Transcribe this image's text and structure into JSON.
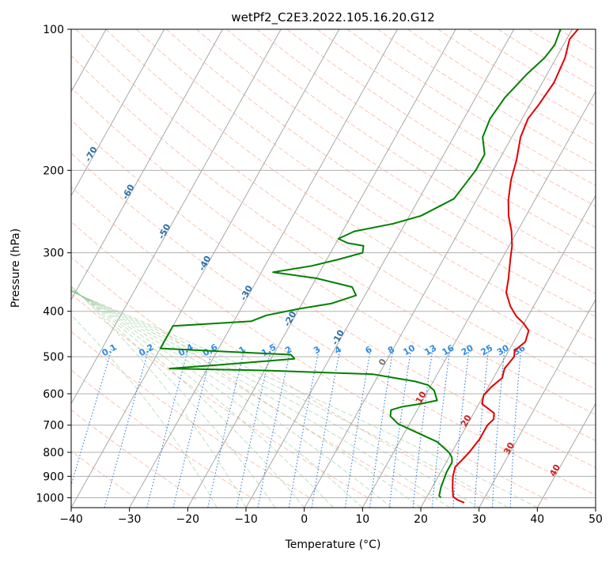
{
  "chart_data": {
    "type": "line",
    "title": "wetPf2_C2E3.2022.105.16.20.G12",
    "xlabel": "Temperature (°C)",
    "ylabel": "Pressure (hPa)",
    "xlim": [
      -40,
      50
    ],
    "ylim": [
      1050,
      100
    ],
    "y_scale": "log",
    "grid": true,
    "x_ticks": [
      -40,
      -30,
      -20,
      -10,
      0,
      10,
      20,
      30,
      40,
      50
    ],
    "y_ticks": [
      100,
      200,
      300,
      400,
      500,
      600,
      700,
      800,
      900,
      1000
    ],
    "skewed_isotherms": [
      -100,
      -90,
      -80,
      -70,
      -60,
      -50,
      -40,
      -30,
      -20,
      -10,
      0,
      10,
      20,
      30,
      40
    ],
    "mixing_ratio_labels": [
      "0.1",
      "0.2",
      "0.4",
      "0.6",
      "1",
      "1.5",
      "2",
      "3",
      "4",
      "6",
      "8",
      "10",
      "13",
      "16",
      "20",
      "25",
      "30",
      "36"
    ],
    "series": [
      {
        "color": "#e00000",
        "points": [
          [
            27.0,
            1025
          ],
          [
            25.5,
            1010
          ],
          [
            24.5,
            995
          ],
          [
            23.5,
            950
          ],
          [
            22.5,
            900
          ],
          [
            22.0,
            860
          ],
          [
            22.5,
            830
          ],
          [
            23.0,
            800
          ],
          [
            23.5,
            750
          ],
          [
            23.5,
            700
          ],
          [
            24.0,
            680
          ],
          [
            23.5,
            660
          ],
          [
            22.5,
            650
          ],
          [
            20.5,
            630
          ],
          [
            20.0,
            605
          ],
          [
            20.5,
            580
          ],
          [
            21.5,
            555
          ],
          [
            21.0,
            530
          ],
          [
            21.5,
            500
          ],
          [
            21.0,
            485
          ],
          [
            22.0,
            465
          ],
          [
            21.5,
            440
          ],
          [
            20.0,
            425
          ],
          [
            18.0,
            410
          ],
          [
            16.0,
            390
          ],
          [
            14.0,
            365
          ],
          [
            13.0,
            340
          ],
          [
            11.5,
            310
          ],
          [
            10.5,
            290
          ],
          [
            9.0,
            270
          ],
          [
            7.0,
            250
          ],
          [
            5.5,
            232
          ],
          [
            4.0,
            210
          ],
          [
            3.0,
            190
          ],
          [
            1.5,
            170
          ],
          [
            1.0,
            155
          ],
          [
            1.5,
            145
          ],
          [
            2.0,
            130
          ],
          [
            1.5,
            115
          ],
          [
            0.5,
            105
          ],
          [
            1.0,
            100
          ]
        ]
      },
      {
        "color": "#008000",
        "points": [
          [
            22.5,
            1000
          ],
          [
            22.0,
            990
          ],
          [
            21.5,
            950
          ],
          [
            21.0,
            880
          ],
          [
            21.0,
            840
          ],
          [
            20.5,
            820
          ],
          [
            19.5,
            800
          ],
          [
            16.5,
            760
          ],
          [
            12.0,
            725
          ],
          [
            8.0,
            695
          ],
          [
            6.0,
            670
          ],
          [
            5.5,
            650
          ],
          [
            7.0,
            640
          ],
          [
            10.0,
            630
          ],
          [
            12.5,
            620
          ],
          [
            11.0,
            590
          ],
          [
            9.5,
            575
          ],
          [
            7.0,
            565
          ],
          [
            -1.0,
            545
          ],
          [
            -20.0,
            535
          ],
          [
            -36.5,
            530
          ],
          [
            -28.0,
            520
          ],
          [
            -16.0,
            505
          ],
          [
            -17.0,
            495
          ],
          [
            -25.0,
            490
          ],
          [
            -40.0,
            480
          ],
          [
            -40.0,
            430
          ],
          [
            -27.0,
            420
          ],
          [
            -25.0,
            408
          ],
          [
            -20.0,
            395
          ],
          [
            -15.0,
            385
          ],
          [
            -11.5,
            370
          ],
          [
            -13.0,
            355
          ],
          [
            -20.0,
            340
          ],
          [
            -28.0,
            330
          ],
          [
            -22.0,
            320
          ],
          [
            -18.0,
            310
          ],
          [
            -14.5,
            300
          ],
          [
            -15.0,
            290
          ],
          [
            -18.0,
            286
          ],
          [
            -20.0,
            280
          ],
          [
            -18.0,
            270
          ],
          [
            -12.0,
            260
          ],
          [
            -8.0,
            250
          ],
          [
            -4.0,
            230
          ],
          [
            -3.0,
            200
          ],
          [
            -3.0,
            185
          ],
          [
            -5.0,
            170
          ],
          [
            -5.5,
            155
          ],
          [
            -5.0,
            140
          ],
          [
            -3.5,
            125
          ],
          [
            -2.0,
            115
          ],
          [
            -1.5,
            108
          ],
          [
            -2.0,
            100
          ]
        ]
      }
    ]
  }
}
